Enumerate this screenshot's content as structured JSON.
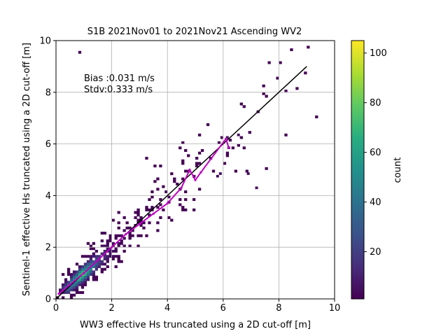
{
  "chart_data": {
    "type": "heatmap",
    "title": "S1B 2021Nov01 to 2021Nov21 Ascending WV2",
    "xlabel": "WW3 effective Hs truncated using a 2D cut-off [m]",
    "ylabel": "Sentinel-1 effective Hs truncated using a 2D cut-off [m]",
    "xlim": [
      0,
      10
    ],
    "ylim": [
      0,
      10
    ],
    "x_ticks": [
      "0",
      "2",
      "4",
      "6",
      "8",
      "10"
    ],
    "y_ticks": [
      "0",
      "2",
      "4",
      "6",
      "8",
      "10"
    ],
    "grid": true,
    "annotations": {
      "bias": "Bias :0.031 m/s",
      "stdv": "Stdv:0.333 m/s"
    },
    "colorbar": {
      "label": "count",
      "range": [
        1,
        105
      ],
      "ticks": [
        "20",
        "40",
        "60",
        "80",
        "100"
      ],
      "colormap": "viridis"
    },
    "identity_line": {
      "x": [
        0,
        9
      ],
      "y": [
        0,
        9
      ],
      "color": "#000000"
    },
    "mean_curve": {
      "color": "#c000c0",
      "x": [
        0.1,
        0.5,
        1.0,
        1.5,
        2.0,
        2.5,
        3.0,
        3.5,
        4.0,
        4.5,
        4.8,
        5.0,
        5.2,
        6.1,
        6.2
      ],
      "y": [
        0.2,
        0.55,
        1.0,
        1.5,
        2.0,
        2.5,
        2.9,
        3.3,
        3.7,
        4.3,
        5.0,
        4.6,
        4.9,
        6.2,
        5.85
      ]
    },
    "outliers": {
      "x": [
        5.8,
        5.9,
        6.15,
        6.2,
        6.55,
        6.9,
        7.2
      ],
      "y": [
        4.75,
        4.85,
        6.25,
        5.85,
        6.35,
        4.85,
        4.3
      ]
    },
    "density": {
      "bin_size": 0.1,
      "center_points": [
        [
          0.1,
          0.15
        ],
        [
          0.6,
          0.6
        ],
        [
          1.2,
          1.25
        ],
        [
          1.8,
          1.75
        ],
        [
          2.4,
          2.35
        ],
        [
          3.0,
          2.95
        ],
        [
          3.6,
          3.5
        ],
        [
          4.2,
          4.05
        ],
        [
          4.8,
          4.6
        ],
        [
          5.2,
          5.0
        ]
      ],
      "peak_count": 105,
      "peak_location": [
        1.3,
        1.2
      ]
    }
  }
}
